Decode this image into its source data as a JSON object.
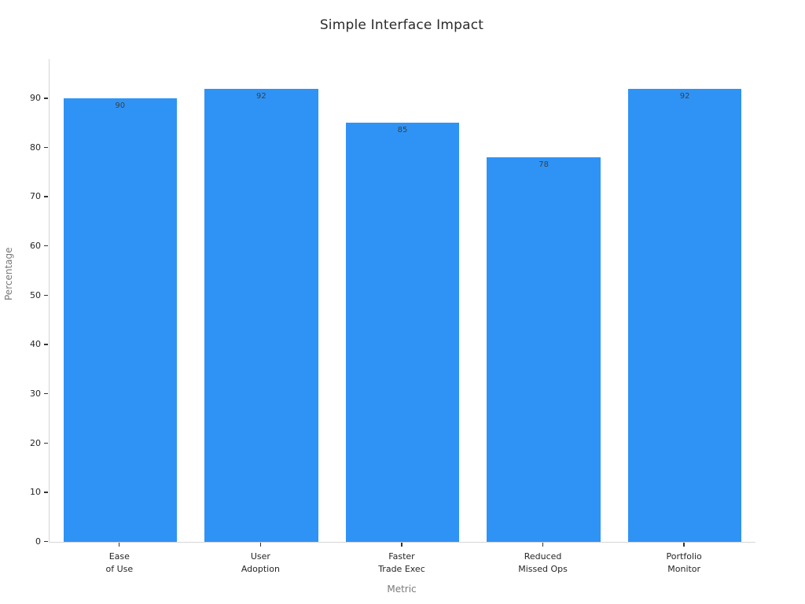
{
  "chart_data": {
    "type": "bar",
    "title": "Simple Interface Impact",
    "xlabel": "Metric",
    "ylabel": "Percentage",
    "categories": [
      "Ease\nof Use",
      "User\nAdoption",
      "Faster\nTrade Exec",
      "Reduced\nMissed Ops",
      "Portfolio\nMonitor"
    ],
    "values": [
      90,
      92,
      85,
      78,
      92
    ],
    "value_labels": [
      "90",
      "92",
      "85",
      "78",
      "92"
    ],
    "yticks": [
      0,
      10,
      20,
      30,
      40,
      50,
      60,
      70,
      80,
      90
    ],
    "ylim": [
      0,
      98
    ],
    "grid": false,
    "legend_position": "none",
    "bar_color": "#2f93f5",
    "value_label_color": "#3b4045",
    "tick_label_color": "#262626",
    "axis_label_color": "#7a7a7a",
    "spine_color": "#d6d6d6"
  }
}
